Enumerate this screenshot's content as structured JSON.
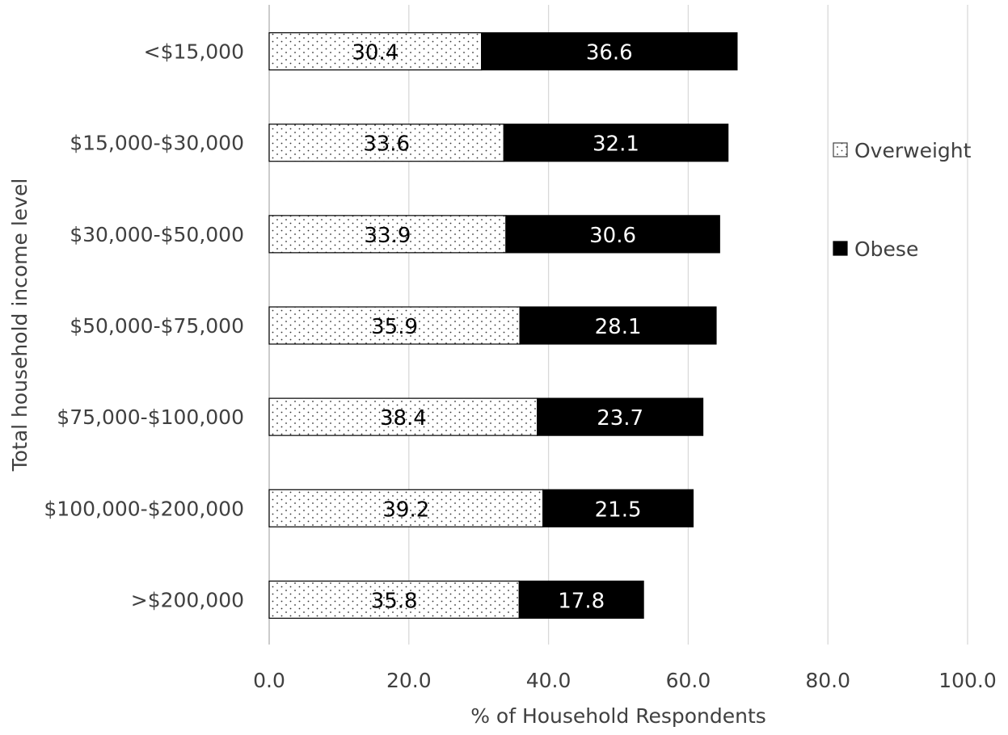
{
  "chart_data": {
    "type": "bar",
    "orientation": "horizontal",
    "stacked": true,
    "title": "",
    "xlabel": "% of Household Respondents",
    "ylabel": "Total household income level",
    "xlim": [
      0,
      100
    ],
    "xticks": [
      "0.0",
      "20.0",
      "40.0",
      "60.0",
      "80.0",
      "100.0"
    ],
    "grid": "vertical",
    "legend_position": "right",
    "categories": [
      "<$15,000",
      "$15,000-$30,000",
      "$30,000-$50,000",
      "$50,000-$75,000",
      "$75,000-$100,000",
      "$100,000-$200,000",
      ">$200,000"
    ],
    "series": [
      {
        "name": "Overweight",
        "pattern": "dotted",
        "fill_color": "#ffffff",
        "label_color": "#000000",
        "values": [
          30.4,
          33.6,
          33.9,
          35.9,
          38.4,
          39.2,
          35.8
        ],
        "labels": [
          "30.4",
          "33.6",
          "33.9",
          "35.9",
          "38.4",
          "39.2",
          "35.8"
        ]
      },
      {
        "name": "Obese",
        "pattern": "solid",
        "fill_color": "#000000",
        "label_color": "#ffffff",
        "values": [
          36.6,
          32.1,
          30.6,
          28.1,
          23.7,
          21.5,
          17.8
        ],
        "labels": [
          "36.6",
          "32.1",
          "30.6",
          "28.1",
          "23.7",
          "21.5",
          "17.8"
        ]
      }
    ],
    "colors": {
      "grid": "#d9d9d9",
      "axis": "#bfbfbf",
      "text": "#404040"
    }
  }
}
